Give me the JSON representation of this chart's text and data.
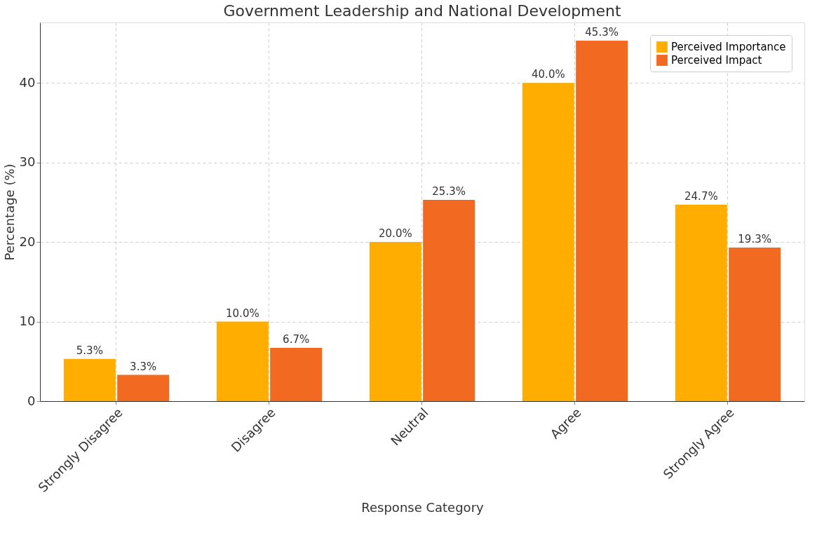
{
  "chart_data": {
    "type": "bar",
    "title": "Government Leadership and National Development",
    "xlabel": "Response Category",
    "ylabel": "Percentage (%)",
    "categories": [
      "Strongly Disagree",
      "Disagree",
      "Neutral",
      "Agree",
      "Strongly Agree"
    ],
    "series": [
      {
        "name": "Perceived Importance",
        "color": "#ffae00",
        "values": [
          5.3,
          10.0,
          20.0,
          40.0,
          24.7
        ],
        "value_labels": [
          "5.3%",
          "10.0%",
          "20.0%",
          "40.0%",
          "24.7%"
        ]
      },
      {
        "name": "Perceived Impact",
        "color": "#f26922",
        "values": [
          3.3,
          6.7,
          25.3,
          45.3,
          19.3
        ],
        "value_labels": [
          "3.3%",
          "6.7%",
          "25.3%",
          "45.3%",
          "19.3%"
        ]
      }
    ],
    "ylim": [
      0,
      47.6
    ],
    "yticks": [
      0,
      10,
      20,
      30,
      40
    ],
    "grid": true,
    "legend": "top right"
  }
}
